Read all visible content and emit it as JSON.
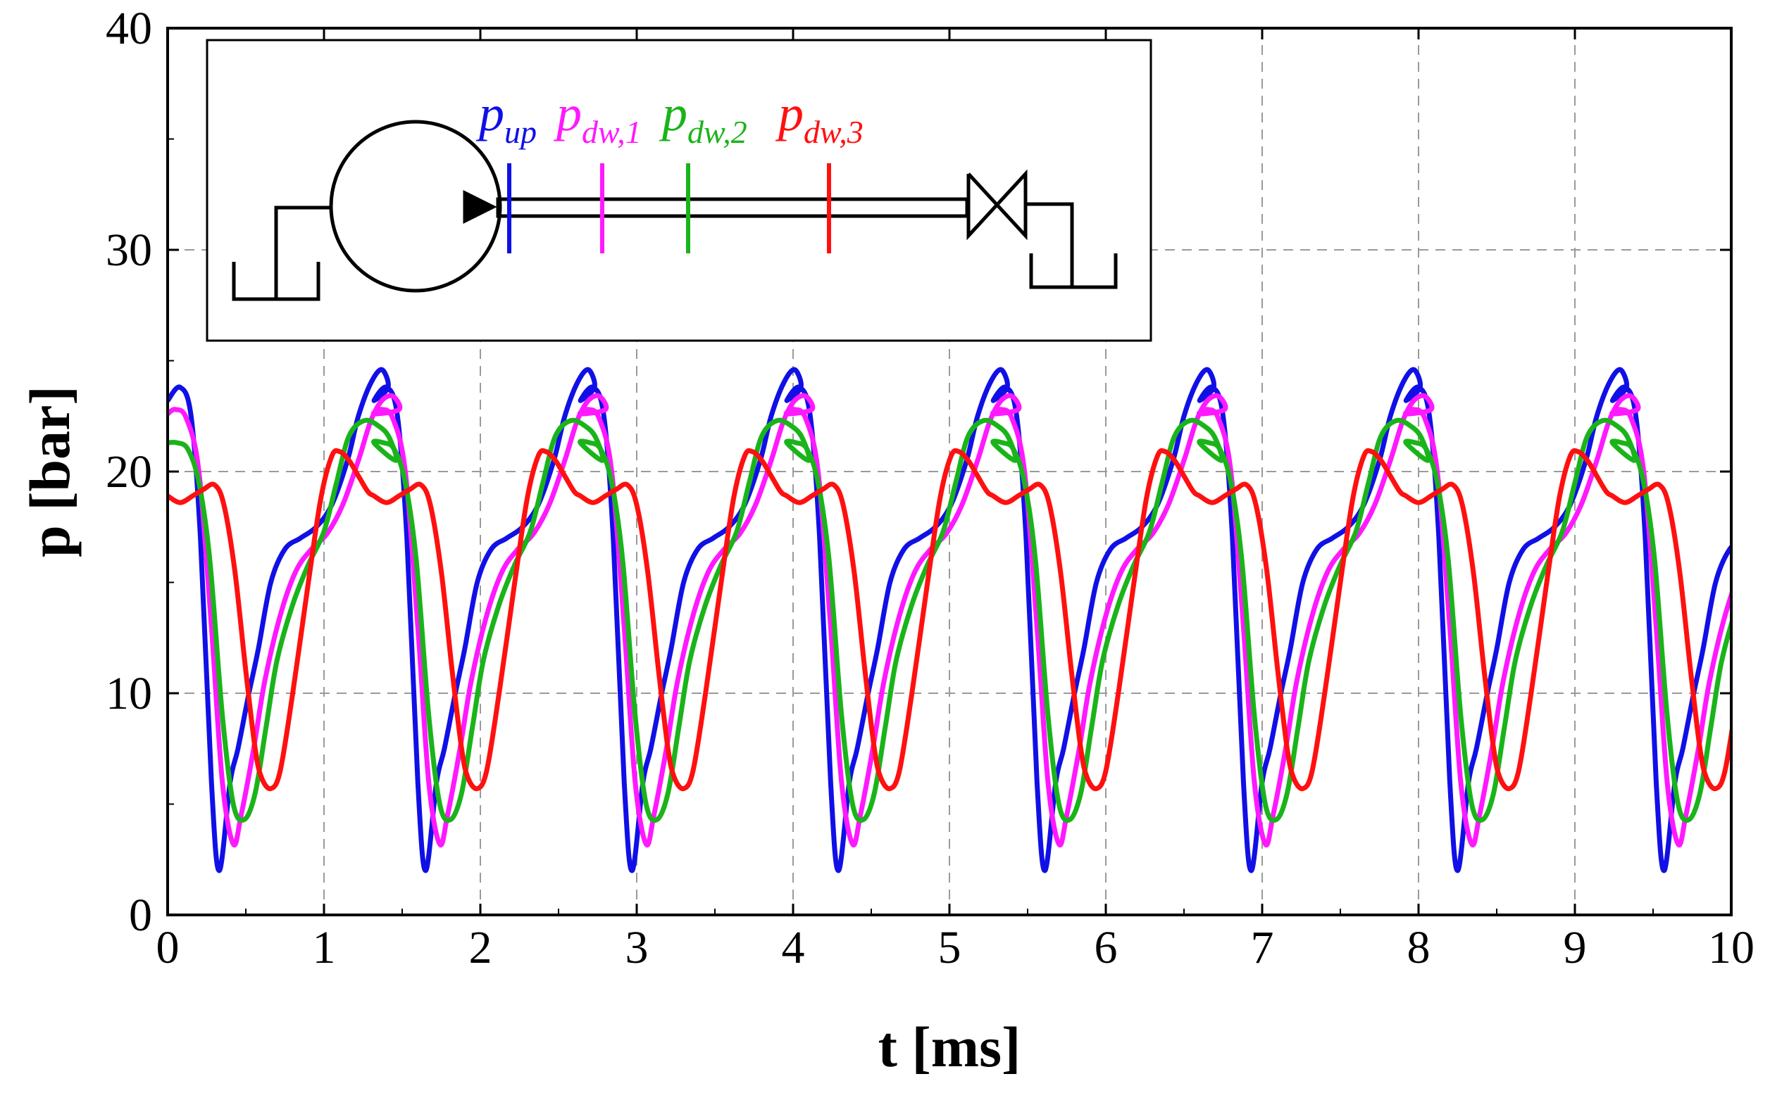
{
  "chart_data": {
    "type": "line",
    "title": "",
    "xlabel": "t [ms]",
    "ylabel": "p [bar]",
    "xlim": [
      0,
      10
    ],
    "ylim": [
      0,
      40
    ],
    "xticks": [
      "0",
      "1",
      "2",
      "3",
      "4",
      "5",
      "6",
      "7",
      "8",
      "9",
      "10"
    ],
    "yticks": [
      "0",
      "10",
      "20",
      "30",
      "40"
    ],
    "grid": true,
    "period_ms": 1.32,
    "legend": {
      "placement": "inset top-left",
      "entries": [
        {
          "main": "p",
          "sub": "up",
          "color": "#1010e6"
        },
        {
          "main": "p",
          "sub": "dw,1",
          "color": "#ff19ff"
        },
        {
          "main": "p",
          "sub": "dw,2",
          "color": "#1ab41a"
        },
        {
          "main": "p",
          "sub": "dw,3",
          "color": "#ff1010"
        }
      ]
    },
    "series": [
      {
        "name": "p_up",
        "color": "#1010e6",
        "x": [
          0,
          0.08,
          0.15,
          0.21,
          0.28,
          0.33,
          0.4,
          0.45,
          0.52,
          0.58,
          0.66,
          0.75,
          0.85,
          0.95,
          1.05,
          1.15,
          1.22,
          1.3,
          1.37,
          1.41,
          1.47
        ],
        "y": [
          23.2,
          23.8,
          22.5,
          17,
          6,
          2,
          6,
          7.5,
          10,
          12,
          15,
          16.5,
          17,
          17.5,
          18.5,
          20.5,
          22.5,
          24,
          24.6,
          23.8,
          22
        ]
      },
      {
        "name": "p_dw,1",
        "color": "#ff19ff",
        "x": [
          0,
          0.05,
          0.12,
          0.2,
          0.28,
          0.35,
          0.42,
          0.47,
          0.55,
          0.62,
          0.72,
          0.82,
          0.92,
          1.02,
          1.12,
          1.22,
          1.3,
          1.37,
          1.44,
          1.48,
          1.53
        ],
        "y": [
          22.6,
          22.8,
          22.4,
          20,
          13,
          6,
          3.2,
          4.5,
          7.5,
          10.5,
          13.5,
          15.5,
          16.5,
          17.2,
          18.5,
          20.5,
          22.3,
          23.2,
          23.4,
          22.8,
          21
        ]
      },
      {
        "name": "p_dw,2",
        "color": "#1ab41a",
        "x": [
          0,
          0.06,
          0.13,
          0.2,
          0.27,
          0.35,
          0.42,
          0.49,
          0.56,
          0.63,
          0.7,
          0.8,
          0.9,
          1.0,
          1.08,
          1.16,
          1.26,
          1.36,
          1.42,
          1.46,
          1.52
        ],
        "y": [
          21.3,
          21.3,
          21,
          19.5,
          16,
          9,
          5,
          4.3,
          5.5,
          8.5,
          11.5,
          14,
          15.8,
          17.3,
          19.5,
          21.6,
          22.3,
          22,
          21.5,
          20.5,
          17
        ]
      },
      {
        "name": "p_dw,3",
        "color": "#ff1010",
        "x": [
          0,
          0.08,
          0.16,
          0.23,
          0.3,
          0.36,
          0.43,
          0.5,
          0.56,
          0.6,
          0.66,
          0.72,
          0.8,
          0.9,
          0.98,
          1.05,
          1.1,
          1.16,
          1.22,
          1.28,
          1.34
        ],
        "y": [
          18.9,
          18.6,
          18.9,
          19.2,
          19.4,
          18.5,
          15.5,
          11,
          7.5,
          6.2,
          5.7,
          6.5,
          10,
          15,
          18.8,
          20.7,
          20.9,
          20.5,
          19.8,
          19.1,
          18.9
        ]
      }
    ]
  },
  "inset": {
    "pipe_markers": [
      "p_up",
      "p_dw,1",
      "p_dw,2",
      "p_dw,3"
    ]
  }
}
